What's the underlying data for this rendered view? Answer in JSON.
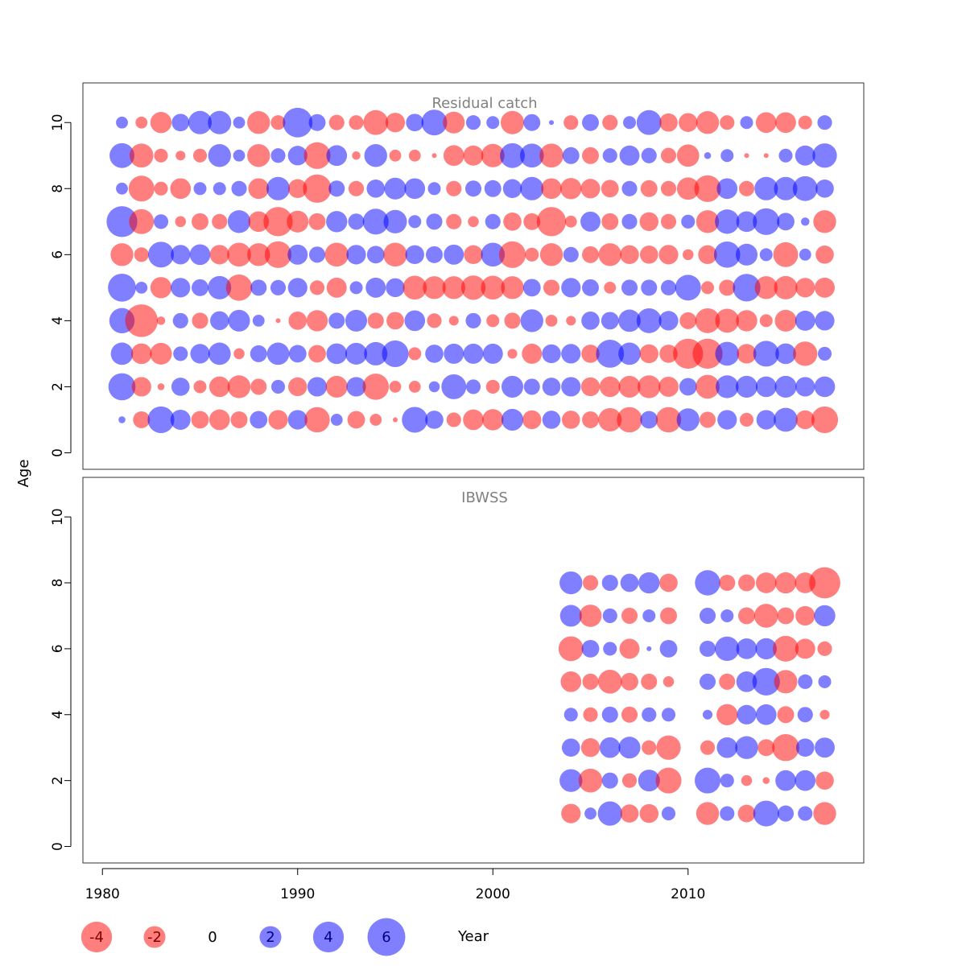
{
  "chart_data": {
    "type": "scatter",
    "subtype": "bubble",
    "xlabel": "Year",
    "ylabel": "Age",
    "xlim": [
      1979,
      2019
    ],
    "xticks": [
      1980,
      1990,
      2000,
      2010
    ],
    "colors": {
      "positive": "#0000ff",
      "negative": "#ff0000",
      "opacity": 0.5
    },
    "legend": {
      "placement": "bottom",
      "values": [
        -4,
        -2,
        0,
        2,
        4,
        6
      ],
      "labels": [
        "-4",
        "-2",
        "0",
        "2",
        "4",
        "6"
      ]
    },
    "panels": [
      {
        "title": "Residual catch",
        "ylim": [
          -0.5,
          11.2
        ],
        "yticks": [
          0,
          2,
          4,
          6,
          8,
          10
        ],
        "years": [
          1981,
          1982,
          1983,
          1984,
          1985,
          1986,
          1987,
          1988,
          1989,
          1990,
          1991,
          1992,
          1993,
          1994,
          1995,
          1996,
          1997,
          1998,
          1999,
          2000,
          2001,
          2002,
          2003,
          2004,
          2005,
          2006,
          2007,
          2008,
          2009,
          2010,
          2011,
          2012,
          2013,
          2014,
          2015,
          2016,
          2017
        ],
        "ages": [
          1,
          2,
          3,
          4,
          5,
          6,
          7,
          8,
          9,
          10
        ],
        "residuals": {
          "10": [
            0.6,
            -0.6,
            -1.9,
            1.3,
            2.3,
            2.3,
            0.6,
            -2.2,
            -0.9,
            3.7,
            1.2,
            -1.0,
            -0.9,
            -2.6,
            -1.6,
            1.3,
            2.8,
            -2.0,
            0.9,
            0.7,
            -2.3,
            1.2,
            0.1,
            -0.9,
            1.2,
            -1.0,
            0.7,
            2.6,
            -1.4,
            -1.5,
            -2.2,
            -0.9,
            0.7,
            -1.8,
            -1.8,
            -0.8,
            0.9
          ],
          "9": [
            2.6,
            -2.4,
            -0.8,
            -0.4,
            -0.8,
            2.2,
            0.6,
            -2.2,
            0.9,
            1.6,
            -3.0,
            1.8,
            -0.3,
            2.2,
            -0.6,
            -0.6,
            -0.1,
            -1.8,
            -1.7,
            -2.3,
            2.6,
            2.4,
            -2.4,
            1.2,
            -1.2,
            0.9,
            1.7,
            1.0,
            -1.0,
            -2.1,
            0.2,
            0.7,
            -0.1,
            -0.1,
            0.8,
            1.7,
            2.5
          ],
          "8": [
            0.6,
            -2.8,
            -0.8,
            -1.8,
            0.7,
            0.7,
            1.0,
            -1.8,
            2.3,
            -1.5,
            -3.4,
            1.1,
            -1.0,
            1.4,
            2.0,
            1.8,
            0.7,
            -1.0,
            1.1,
            1.2,
            1.5,
            2.3,
            -1.8,
            -1.9,
            -1.6,
            -1.3,
            1.0,
            -1.2,
            -1.0,
            -2.1,
            -3.0,
            1.8,
            -1.0,
            2.3,
            2.3,
            2.6,
            1.4
          ],
          "7": [
            4.0,
            -2.6,
            0.9,
            -0.5,
            -1.2,
            -1.0,
            2.2,
            -1.8,
            -3.6,
            -2.0,
            -1.2,
            1.9,
            1.1,
            2.8,
            2.3,
            0.7,
            1.1,
            -1.0,
            -0.5,
            1.0,
            -1.4,
            -1.2,
            -3.6,
            -0.6,
            1.7,
            -1.2,
            1.0,
            -1.5,
            -1.0,
            0.8,
            -2.2,
            2.5,
            1.8,
            3.0,
            1.3,
            0.3,
            -2.2
          ],
          "6": [
            -2.2,
            -0.9,
            2.8,
            1.6,
            1.8,
            -1.6,
            -2.4,
            -2.2,
            -3.0,
            1.7,
            1.1,
            -2.4,
            1.6,
            1.3,
            -2.4,
            1.5,
            1.2,
            1.7,
            -1.5,
            2.4,
            -3.0,
            -0.8,
            -2.2,
            1.0,
            -1.2,
            -2.2,
            -1.5,
            -1.4,
            -1.6,
            -0.5,
            -1.5,
            2.9,
            2.0,
            0.7,
            -2.6,
            0.6,
            -1.4
          ],
          "5": [
            3.3,
            0.6,
            -1.9,
            1.6,
            1.2,
            2.3,
            -2.9,
            1.1,
            1.0,
            1.6,
            -0.9,
            -1.7,
            0.7,
            1.7,
            1.5,
            -2.4,
            -2.2,
            -2.2,
            -2.5,
            -2.4,
            -2.2,
            1.3,
            -1.1,
            1.6,
            1.2,
            -0.6,
            1.1,
            1.1,
            1.0,
            2.8,
            -0.7,
            -1.1,
            3.2,
            -2.2,
            -2.3,
            -1.6,
            -1.7
          ],
          "4": [
            2.7,
            -4.5,
            -0.3,
            1.0,
            -1.1,
            1.5,
            2.0,
            0.6,
            -0.1,
            -1.4,
            -1.9,
            1.1,
            2.0,
            -1.1,
            -1.3,
            1.8,
            -0.9,
            -0.4,
            1.0,
            -0.7,
            -1.1,
            2.2,
            -0.6,
            -0.4,
            1.4,
            1.3,
            2.1,
            2.6,
            1.6,
            -1.2,
            -2.6,
            -2.4,
            -1.9,
            -0.7,
            -2.0,
            1.7,
            1.6
          ],
          "3": [
            2.1,
            -1.8,
            -2.0,
            0.9,
            1.6,
            2.1,
            -0.5,
            1.2,
            2.1,
            1.3,
            -1.3,
            1.8,
            2.0,
            2.3,
            3.0,
            -0.7,
            1.4,
            1.7,
            1.7,
            1.7,
            -0.4,
            -1.7,
            1.5,
            1.6,
            -1.4,
            3.3,
            2.1,
            -1.5,
            -1.4,
            -3.8,
            -3.8,
            2.4,
            -1.6,
            2.8,
            1.8,
            -2.5,
            0.8
          ],
          "2": [
            3.1,
            -1.6,
            -0.2,
            1.4,
            -0.7,
            -1.8,
            -2.2,
            -1.1,
            0.8,
            -1.5,
            1.6,
            -2.0,
            1.6,
            -2.9,
            -0.6,
            -0.6,
            0.5,
            2.6,
            0.9,
            -0.8,
            2.0,
            1.1,
            1.4,
            1.6,
            -1.5,
            -1.8,
            -2.0,
            -2.2,
            -1.7,
            1.3,
            -2.4,
            2.2,
            2.0,
            1.8,
            2.0,
            1.6,
            1.8
          ],
          "1": [
            0.2,
            -1.2,
            3.0,
            1.7,
            -1.3,
            -1.8,
            -1.2,
            1.3,
            -1.6,
            1.6,
            -2.7,
            0.6,
            -1.3,
            -0.6,
            -0.1,
            2.8,
            1.4,
            -0.9,
            -1.8,
            -1.9,
            2.0,
            -1.5,
            1.4,
            -1.4,
            -1.2,
            -2.3,
            -2.7,
            1.3,
            -2.7,
            2.2,
            -1.1,
            1.6,
            -0.8,
            1.6,
            2.4,
            -1.5,
            -3.0
          ]
        }
      },
      {
        "title": "IBWSS",
        "ylim": [
          -0.5,
          11.2
        ],
        "yticks": [
          0,
          2,
          4,
          6,
          8,
          10
        ],
        "years": [
          2004,
          2005,
          2006,
          2007,
          2008,
          2009,
          2010,
          2011,
          2012,
          2013,
          2014,
          2015,
          2016,
          2017
        ],
        "ages": [
          1,
          2,
          3,
          4,
          5,
          6,
          7,
          8
        ],
        "residuals": {
          "8": [
            2.2,
            -1.0,
            1.1,
            1.4,
            1.9,
            -1.4,
            null,
            2.7,
            -1.1,
            -1.2,
            -1.8,
            -1.9,
            -1.8,
            -4.1
          ],
          "7": [
            2.0,
            -2.1,
            0.9,
            -1.1,
            0.7,
            -1.2,
            null,
            1.1,
            0.7,
            -1.2,
            -2.4,
            -1.2,
            -1.6,
            1.9
          ],
          "6": [
            -2.6,
            1.3,
            0.8,
            -1.7,
            0.1,
            1.3,
            null,
            1.1,
            2.5,
            1.8,
            1.9,
            -2.8,
            -1.7,
            -0.9
          ],
          "5": [
            -1.8,
            -1.1,
            -2.4,
            -1.3,
            -1.1,
            -0.5,
            null,
            1.1,
            -1.1,
            1.8,
            3.2,
            -2.3,
            0.9,
            0.7
          ],
          "4": [
            0.8,
            -0.9,
            1.1,
            -1.1,
            0.9,
            0.8,
            null,
            0.4,
            -1.9,
            1.6,
            1.8,
            -1.2,
            1.0,
            -0.4
          ],
          "3": [
            1.4,
            -1.5,
            1.8,
            2.0,
            -0.9,
            -2.5,
            null,
            -0.9,
            1.8,
            2.2,
            -1.2,
            -3.1,
            1.4,
            1.7
          ],
          "2": [
            2.2,
            -2.4,
            1.1,
            -0.9,
            2.0,
            -2.8,
            null,
            2.8,
            0.8,
            -0.5,
            -0.2,
            1.8,
            1.8,
            -1.4
          ],
          "1": [
            -1.6,
            0.6,
            2.5,
            -1.4,
            -1.5,
            0.8,
            null,
            -2.2,
            0.9,
            -1.3,
            2.8,
            1.1,
            0.9,
            -2.2
          ]
        }
      }
    ]
  }
}
